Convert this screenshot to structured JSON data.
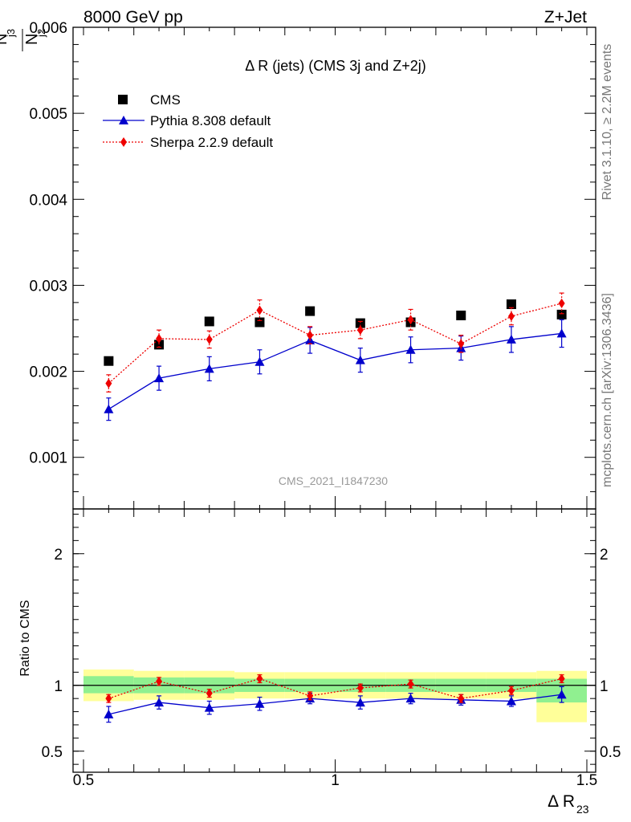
{
  "header": {
    "energy_label": "8000 GeV pp",
    "process_label": "Z+Jet"
  },
  "side_labels": {
    "rivet": "Rivet 3.1.10, ≥ 2.2M events",
    "mcplots": "mcplots.cern.ch [arXiv:1306.3436]"
  },
  "chart_data": {
    "type": "scatter",
    "title": "Δ R (jets) (CMS 3j and Z+2j)",
    "watermark": "CMS_2021_I1847230",
    "xlabel": "Δ R",
    "xlabel_sub": "23",
    "ylabel_num": "N",
    "ylabel_num_sub": "j3",
    "ylabel_den": "N",
    "ylabel_den_sub": "j2",
    "ratio_ylabel": "Ratio to CMS",
    "xlim": [
      0.5,
      1.5
    ],
    "ylim_main": [
      0.0004,
      0.006
    ],
    "ylim_ratio": [
      0.34,
      2.34
    ],
    "x_ticks": [
      0.5,
      1,
      1.5
    ],
    "x_tick_labels": [
      "0.5",
      "1",
      "1.5"
    ],
    "y_ticks_main": [
      0.001,
      0.002,
      0.003,
      0.004,
      0.005,
      0.006
    ],
    "y_tick_labels_main": [
      "0.001",
      "0.002",
      "0.003",
      "0.004",
      "0.005",
      "0.006"
    ],
    "y_ticks_ratio": [
      0.5,
      1,
      2
    ],
    "y_tick_labels_ratio": [
      "0.5",
      "1",
      "2"
    ],
    "x": [
      0.55,
      0.65,
      0.75,
      0.85,
      0.95,
      1.05,
      1.15,
      1.25,
      1.35,
      1.45
    ],
    "series": [
      {
        "name": "CMS",
        "color": "#000000",
        "marker": "square",
        "values": [
          0.00212,
          0.00231,
          0.00258,
          0.00257,
          0.0027,
          0.00256,
          0.00257,
          0.00265,
          0.00278,
          0.00266
        ]
      },
      {
        "name": "Pythia 8.308 default",
        "color": "#0000cc",
        "marker": "triangle",
        "line": "solid",
        "values": [
          0.00156,
          0.00192,
          0.00203,
          0.00211,
          0.00236,
          0.00213,
          0.00225,
          0.00227,
          0.00237,
          0.00244
        ],
        "errors": [
          0.00013,
          0.00014,
          0.00014,
          0.00014,
          0.00015,
          0.00014,
          0.00015,
          0.00014,
          0.00015,
          0.00016
        ],
        "ratio": [
          0.78,
          0.87,
          0.83,
          0.86,
          0.9,
          0.87,
          0.9,
          0.89,
          0.88,
          0.93
        ],
        "ratio_errors": [
          0.06,
          0.05,
          0.05,
          0.05,
          0.04,
          0.05,
          0.04,
          0.04,
          0.04,
          0.06
        ]
      },
      {
        "name": "Sherpa 2.2.9 default",
        "color": "#ee0000",
        "marker": "diamond",
        "line": "dotted",
        "values": [
          0.00186,
          0.00238,
          0.00237,
          0.00271,
          0.00242,
          0.00248,
          0.0026,
          0.00232,
          0.00264,
          0.00279
        ],
        "errors": [
          0.0001,
          0.0001,
          0.0001,
          0.00012,
          0.0001,
          0.0001,
          0.00012,
          0.0001,
          0.0001,
          0.00012
        ],
        "ratio": [
          0.9,
          1.03,
          0.94,
          1.05,
          0.92,
          0.98,
          1.01,
          0.9,
          0.96,
          1.05
        ],
        "ratio_errors": [
          0.03,
          0.03,
          0.03,
          0.03,
          0.03,
          0.03,
          0.03,
          0.03,
          0.03,
          0.03
        ]
      }
    ],
    "uncertainty_bands": [
      {
        "x0": 0.5,
        "x1": 0.6,
        "green": [
          0.94,
          1.07
        ],
        "yellow": [
          0.88,
          1.12
        ]
      },
      {
        "x0": 0.6,
        "x1": 0.7,
        "green": [
          0.94,
          1.06
        ],
        "yellow": [
          0.89,
          1.11
        ]
      },
      {
        "x0": 0.7,
        "x1": 0.8,
        "green": [
          0.94,
          1.06
        ],
        "yellow": [
          0.89,
          1.11
        ]
      },
      {
        "x0": 0.8,
        "x1": 0.9,
        "green": [
          0.95,
          1.05
        ],
        "yellow": [
          0.9,
          1.1
        ]
      },
      {
        "x0": 0.9,
        "x1": 1.0,
        "green": [
          0.95,
          1.05
        ],
        "yellow": [
          0.9,
          1.1
        ]
      },
      {
        "x0": 1.0,
        "x1": 1.1,
        "green": [
          0.95,
          1.05
        ],
        "yellow": [
          0.9,
          1.1
        ]
      },
      {
        "x0": 1.1,
        "x1": 1.2,
        "green": [
          0.95,
          1.05
        ],
        "yellow": [
          0.9,
          1.1
        ]
      },
      {
        "x0": 1.2,
        "x1": 1.3,
        "green": [
          0.95,
          1.05
        ],
        "yellow": [
          0.9,
          1.1
        ]
      },
      {
        "x0": 1.3,
        "x1": 1.4,
        "green": [
          0.95,
          1.05
        ],
        "yellow": [
          0.9,
          1.1
        ]
      },
      {
        "x0": 1.4,
        "x1": 1.5,
        "green": [
          0.87,
          1.05
        ],
        "yellow": [
          0.72,
          1.11
        ]
      }
    ],
    "band_colors": {
      "green": "#90f090",
      "yellow": "#ffff99"
    },
    "legend_position": "top-left",
    "grid": false
  }
}
